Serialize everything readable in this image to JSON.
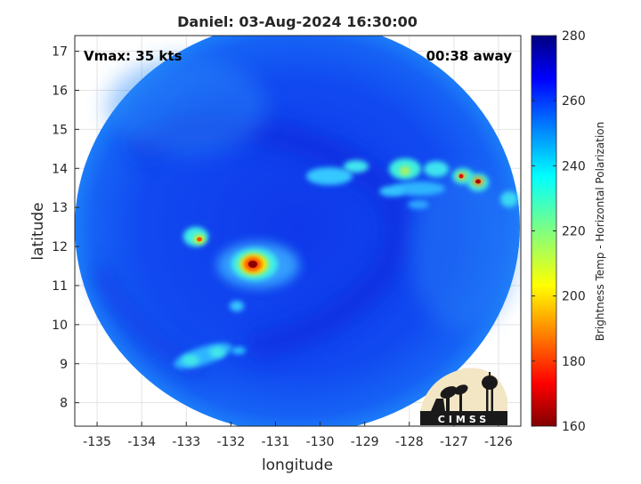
{
  "chart_data": {
    "type": "heatmap",
    "title": "Daniel: 03-Aug-2024 16:30:00",
    "xlabel": "longitude",
    "ylabel": "latitude",
    "xlim": [
      -135.5,
      -125.5
    ],
    "ylim": [
      7.4,
      17.4
    ],
    "xticks": [
      -135,
      -134,
      -133,
      -132,
      -131,
      -130,
      -129,
      -128,
      -127,
      -126
    ],
    "yticks": [
      8,
      9,
      10,
      11,
      12,
      13,
      14,
      15,
      16,
      17
    ],
    "grid": true,
    "annotations": {
      "vmax": "Vmax: 35 kts",
      "time_offset": "00:38 away"
    },
    "colorbar": {
      "label": "Brightness Temp - Horizontal Polarization",
      "min": 160,
      "max": 280,
      "ticks": [
        160,
        180,
        200,
        220,
        240,
        260,
        280
      ],
      "colormap": "jet"
    },
    "swath": {
      "center_lon": -130.6,
      "center_lat": 12.4,
      "background_value": 262
    },
    "features": [
      {
        "name": "eye",
        "lon": -131.4,
        "lat": 11.5,
        "min_value": 168
      },
      {
        "name": "outer-band-west",
        "lon": -132.6,
        "lat": 12.2,
        "min_value": 205
      },
      {
        "name": "band-north-1",
        "lon": -128.0,
        "lat": 13.9,
        "min_value": 225
      },
      {
        "name": "band-north-2",
        "lon": -126.5,
        "lat": 13.8,
        "min_value": 185
      },
      {
        "name": "band-north-3",
        "lon": -126.1,
        "lat": 13.65,
        "min_value": 175
      },
      {
        "name": "band-south",
        "lon": -132.6,
        "lat": 9.2,
        "min_value": 230
      }
    ],
    "logo_text": "CIMSS"
  }
}
